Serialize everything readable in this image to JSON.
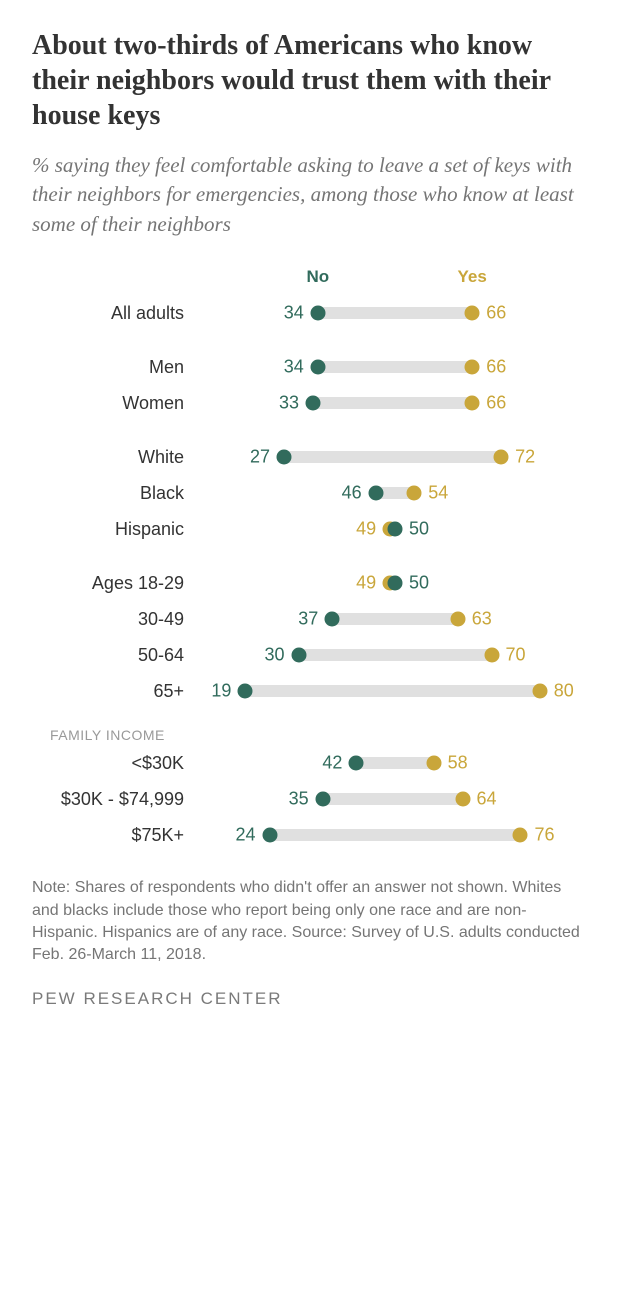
{
  "title": "About two-thirds of Americans who know their neighbors would trust them with their house keys",
  "subtitle": "% saying they feel comfortable asking to leave a set of keys with their neighbors for emergencies, among those who know at least some of their neighbors",
  "legend": {
    "no": {
      "label": "No",
      "color": "#316b5c"
    },
    "yes": {
      "label": "Yes",
      "color": "#c9a63a"
    }
  },
  "chart": {
    "scale_min": 10,
    "scale_max": 90,
    "bar_color": "#e0e0e0",
    "dot_size": 15,
    "value_fontsize": 18,
    "label_fontsize": 18,
    "groups": [
      {
        "rows": [
          {
            "label": "All adults",
            "no": 34,
            "yes": 66
          }
        ]
      },
      {
        "rows": [
          {
            "label": "Men",
            "no": 34,
            "yes": 66
          },
          {
            "label": "Women",
            "no": 33,
            "yes": 66
          }
        ]
      },
      {
        "rows": [
          {
            "label": "White",
            "no": 27,
            "yes": 72
          },
          {
            "label": "Black",
            "no": 46,
            "yes": 54
          },
          {
            "label": "Hispanic",
            "no": 50,
            "yes": 49,
            "swap": true
          }
        ]
      },
      {
        "rows": [
          {
            "label": "Ages 18-29",
            "no": 50,
            "yes": 49,
            "swap": true
          },
          {
            "label": "30-49",
            "no": 37,
            "yes": 63
          },
          {
            "label": "50-64",
            "no": 30,
            "yes": 70
          },
          {
            "label": "65+",
            "no": 19,
            "yes": 80
          }
        ]
      },
      {
        "header": "FAMILY INCOME",
        "rows": [
          {
            "label": "<$30K",
            "no": 42,
            "yes": 58
          },
          {
            "label": "$30K - $74,999",
            "no": 35,
            "yes": 64
          },
          {
            "label": "$75K+",
            "no": 24,
            "yes": 76
          }
        ]
      }
    ]
  },
  "note": "Note: Shares of respondents who didn't offer an answer not shown. Whites and blacks include those who report being only one race and are non-Hispanic. Hispanics are of any race. Source: Survey of U.S. adults conducted Feb. 26-March 11, 2018.",
  "source": "PEW RESEARCH CENTER"
}
